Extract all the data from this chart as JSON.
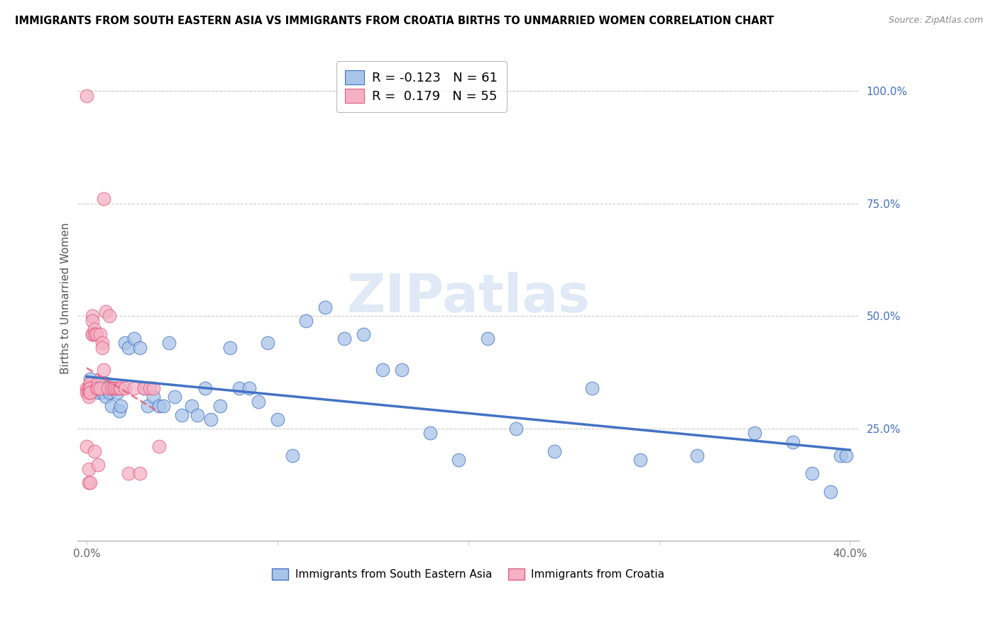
{
  "title": "IMMIGRANTS FROM SOUTH EASTERN ASIA VS IMMIGRANTS FROM CROATIA BIRTHS TO UNMARRIED WOMEN CORRELATION CHART",
  "source": "Source: ZipAtlas.com",
  "ylabel": "Births to Unmarried Women",
  "right_yticks": [
    "100.0%",
    "75.0%",
    "50.0%",
    "25.0%"
  ],
  "right_ytick_vals": [
    1.0,
    0.75,
    0.5,
    0.25
  ],
  "legend_blue_r": "-0.123",
  "legend_blue_n": "61",
  "legend_pink_r": "0.179",
  "legend_pink_n": "55",
  "legend_label_blue": "Immigrants from South Eastern Asia",
  "legend_label_pink": "Immigrants from Croatia",
  "color_blue": "#a8c4e8",
  "color_pink": "#f5b0c5",
  "color_blue_line": "#4472c4",
  "color_pink_line": "#e06080",
  "watermark": "ZIPatlas",
  "blue_x": [
    0.002,
    0.003,
    0.004,
    0.005,
    0.006,
    0.007,
    0.008,
    0.009,
    0.01,
    0.01,
    0.011,
    0.012,
    0.013,
    0.015,
    0.016,
    0.017,
    0.018,
    0.02,
    0.022,
    0.025,
    0.028,
    0.03,
    0.032,
    0.035,
    0.038,
    0.04,
    0.043,
    0.046,
    0.05,
    0.055,
    0.058,
    0.062,
    0.065,
    0.07,
    0.075,
    0.08,
    0.085,
    0.09,
    0.095,
    0.1,
    0.108,
    0.115,
    0.125,
    0.135,
    0.145,
    0.155,
    0.165,
    0.18,
    0.195,
    0.21,
    0.225,
    0.245,
    0.265,
    0.29,
    0.32,
    0.35,
    0.37,
    0.38,
    0.39,
    0.395,
    0.398
  ],
  "blue_y": [
    0.36,
    0.35,
    0.34,
    0.34,
    0.33,
    0.35,
    0.33,
    0.34,
    0.35,
    0.32,
    0.34,
    0.33,
    0.3,
    0.34,
    0.33,
    0.29,
    0.3,
    0.44,
    0.43,
    0.45,
    0.43,
    0.34,
    0.3,
    0.32,
    0.3,
    0.3,
    0.44,
    0.32,
    0.28,
    0.3,
    0.28,
    0.34,
    0.27,
    0.3,
    0.43,
    0.34,
    0.34,
    0.31,
    0.44,
    0.27,
    0.19,
    0.49,
    0.52,
    0.45,
    0.46,
    0.38,
    0.38,
    0.24,
    0.18,
    0.45,
    0.25,
    0.2,
    0.34,
    0.18,
    0.19,
    0.24,
    0.22,
    0.15,
    0.11,
    0.19,
    0.19
  ],
  "pink_x": [
    0.0,
    0.0,
    0.0,
    0.0,
    0.001,
    0.001,
    0.001,
    0.001,
    0.001,
    0.001,
    0.001,
    0.002,
    0.002,
    0.002,
    0.002,
    0.002,
    0.002,
    0.002,
    0.002,
    0.003,
    0.003,
    0.003,
    0.003,
    0.004,
    0.004,
    0.004,
    0.005,
    0.005,
    0.005,
    0.006,
    0.006,
    0.006,
    0.007,
    0.007,
    0.008,
    0.008,
    0.009,
    0.009,
    0.01,
    0.011,
    0.012,
    0.013,
    0.014,
    0.015,
    0.016,
    0.017,
    0.018,
    0.02,
    0.022,
    0.025,
    0.028,
    0.03,
    0.033,
    0.035,
    0.038
  ],
  "pink_y": [
    0.99,
    0.34,
    0.33,
    0.21,
    0.34,
    0.34,
    0.33,
    0.33,
    0.32,
    0.16,
    0.13,
    0.35,
    0.35,
    0.34,
    0.34,
    0.34,
    0.33,
    0.33,
    0.13,
    0.5,
    0.49,
    0.46,
    0.46,
    0.47,
    0.46,
    0.2,
    0.46,
    0.46,
    0.34,
    0.35,
    0.34,
    0.17,
    0.46,
    0.34,
    0.44,
    0.43,
    0.76,
    0.38,
    0.51,
    0.34,
    0.5,
    0.34,
    0.34,
    0.34,
    0.34,
    0.34,
    0.34,
    0.34,
    0.15,
    0.34,
    0.15,
    0.34,
    0.34,
    0.34,
    0.21
  ]
}
